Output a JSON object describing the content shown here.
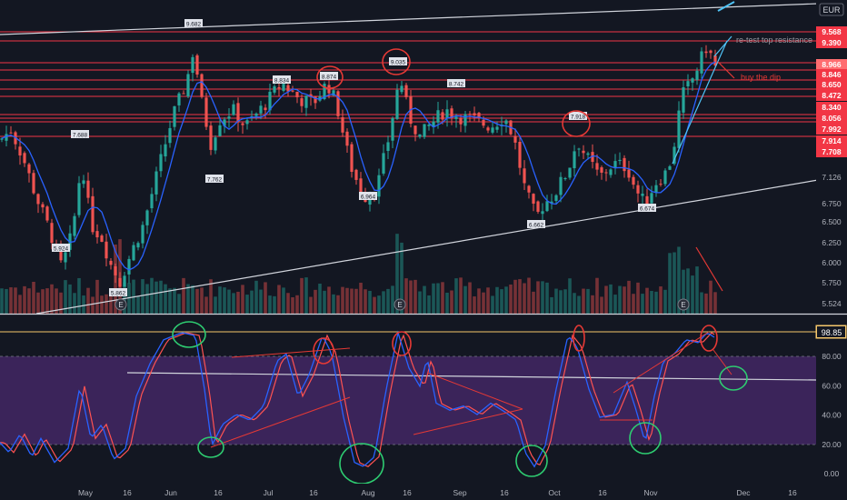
{
  "currency": "EUR",
  "colors": {
    "background": "#131722",
    "up": "#26a69a",
    "down": "#ef5350",
    "ma": "#2962ff",
    "level_line": "#f23645",
    "annotation": "#e53935",
    "circle_green": "#2ecc71",
    "stoch_k": "#2962ff",
    "stoch_d": "#ff5252",
    "stoch_band": "#4a2a6e",
    "axis_text": "#b2b5be",
    "current_price_bg": "#f23645"
  },
  "price_axis": {
    "red_labels": [
      "9.568",
      "9.390",
      "8.966",
      "8.846",
      "8.650",
      "8.472",
      "8.340",
      "8.056",
      "7.992",
      "7.914",
      "7.708"
    ],
    "highlighted_label": "8.966",
    "plain_labels": [
      "7.126",
      "6.750",
      "6.500",
      "6.250",
      "6.000",
      "5.750",
      "5.524"
    ]
  },
  "stoch_axis": {
    "current_value": "98.85",
    "labels": [
      "80.00",
      "60.00",
      "40.00",
      "20.00",
      "0.00"
    ]
  },
  "time_axis": [
    "May",
    "16",
    "Jun",
    "16",
    "Jul",
    "16",
    "Aug",
    "16",
    "Sep",
    "16",
    "Oct",
    "16",
    "Nov",
    "Dec",
    "16"
  ],
  "price_flags": [
    "7.688",
    "5.924",
    "9.682",
    "7.762",
    "8.834",
    "8.874",
    "9.035",
    "6.964",
    "8.742",
    "6.662",
    "7.918",
    "6.674",
    "5.862"
  ],
  "annotations": {
    "retest": "re-test top resistance",
    "buy_dip": "buy the dip"
  },
  "earnings_marker": "E",
  "chart_data": [
    {
      "type": "candlestick",
      "series": [
        {
          "name": "",
          "role": "price"
        },
        {
          "name": "",
          "role": "moving-average"
        }
      ],
      "ylim": [
        5.4,
        9.9
      ],
      "approx_range": {
        "start": "late April",
        "end": "late November",
        "peaks": [
          {
            "label": "Jun",
            "value": 9.682
          },
          {
            "label": "Nov",
            "value": 9.39
          }
        ],
        "troughs": [
          {
            "label": "early May",
            "value": 5.924
          },
          {
            "label": "Aug",
            "value": 6.964
          },
          {
            "label": "Sep",
            "value": 6.662
          },
          {
            "label": "Oct",
            "value": 6.674
          }
        ]
      },
      "horizontal_levels": [
        9.568,
        9.39,
        8.966,
        8.846,
        8.65,
        8.472,
        8.34,
        8.056,
        7.992,
        7.914,
        7.708
      ],
      "volume_bars": true,
      "earnings_events": [
        "May",
        "Aug",
        "Nov"
      ]
    },
    {
      "type": "line",
      "series": [
        {
          "name": "",
          "color": "#2962ff"
        },
        {
          "name": "",
          "color": "#ff5252"
        }
      ],
      "ylim": [
        0,
        100
      ],
      "band": [
        20,
        80
      ],
      "current_value": 98.85
    }
  ]
}
